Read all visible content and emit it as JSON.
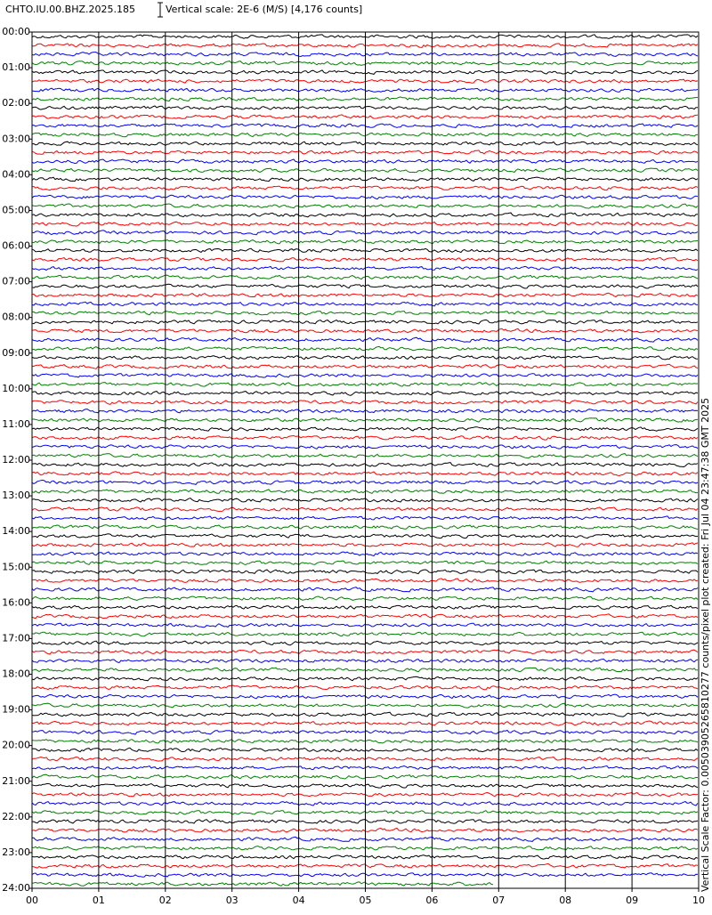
{
  "chart_data": {
    "type": "helicorder",
    "title": "CHTO.IU.00.BHZ.2025.185",
    "subtitle": "Vertical scale: 2E-6 (M/S) [4,176 counts]",
    "annotation": "Vertical Scale Factor: 0.00503905265810277 counts/pixel plot created: Fri Jul 04 23:47:38 GMT 2025",
    "colors": [
      "#000000",
      "#ff0000",
      "#0000ff",
      "#008000"
    ],
    "xlim": [
      0,
      10
    ],
    "xticks": [
      {
        "value": 0,
        "label": "00"
      },
      {
        "value": 1,
        "label": "01"
      },
      {
        "value": 2,
        "label": "02"
      },
      {
        "value": 3,
        "label": "03"
      },
      {
        "value": 4,
        "label": "04"
      },
      {
        "value": 5,
        "label": "05"
      },
      {
        "value": 6,
        "label": "06"
      },
      {
        "value": 7,
        "label": "07"
      },
      {
        "value": 8,
        "label": "08"
      },
      {
        "value": 9,
        "label": "09"
      },
      {
        "value": 10,
        "label": "10"
      }
    ],
    "ylim": [
      0,
      24
    ],
    "yticks": [
      {
        "value": 0,
        "label": "00:00"
      },
      {
        "value": 1,
        "label": "01:00"
      },
      {
        "value": 2,
        "label": "02:00"
      },
      {
        "value": 3,
        "label": "03:00"
      },
      {
        "value": 4,
        "label": "04:00"
      },
      {
        "value": 5,
        "label": "05:00"
      },
      {
        "value": 6,
        "label": "06:00"
      },
      {
        "value": 7,
        "label": "07:00"
      },
      {
        "value": 8,
        "label": "08:00"
      },
      {
        "value": 9,
        "label": "09:00"
      },
      {
        "value": 10,
        "label": "10:00"
      },
      {
        "value": 11,
        "label": "11:00"
      },
      {
        "value": 12,
        "label": "12:00"
      },
      {
        "value": 13,
        "label": "13:00"
      },
      {
        "value": 14,
        "label": "14:00"
      },
      {
        "value": 15,
        "label": "15:00"
      },
      {
        "value": 16,
        "label": "16:00"
      },
      {
        "value": 17,
        "label": "17:00"
      },
      {
        "value": 18,
        "label": "18:00"
      },
      {
        "value": 19,
        "label": "19:00"
      },
      {
        "value": 20,
        "label": "20:00"
      },
      {
        "value": 21,
        "label": "21:00"
      },
      {
        "value": 22,
        "label": "22:00"
      },
      {
        "value": 23,
        "label": "23:00"
      },
      {
        "value": 24,
        "label": "24:00"
      }
    ]
  }
}
